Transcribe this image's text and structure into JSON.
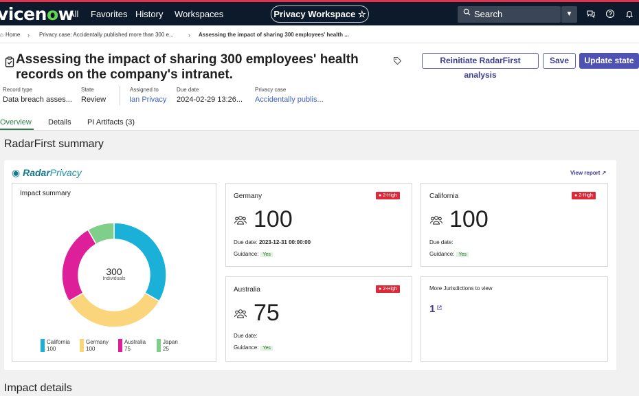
{
  "nav": {
    "logo_prefix": "vicen",
    "logo_o": "o",
    "logo_suffix": "w",
    "links": [
      "All",
      "Favorites",
      "History",
      "Workspaces"
    ],
    "workspace": "Privacy Workspace ☆",
    "search_placeholder": "Search"
  },
  "breadcrumb": {
    "home": "Home",
    "case": "Privacy case: Accidentally published more than 300 e...",
    "current": "Assessing the impact of sharing 300 employees' health ..."
  },
  "record": {
    "title": "Assessing the impact of sharing 300 employees' health records on the company's intranet.",
    "buttons": {
      "reinitiate": "Reinitiate RadarFirst analysis",
      "save": "Save",
      "update": "Update state"
    },
    "fields": [
      {
        "label": "Record type",
        "value": "Data breach asses..."
      },
      {
        "label": "State",
        "value": "Review"
      },
      {
        "label": "Assigned to",
        "value": "Ian Privacy"
      },
      {
        "label": "Due date",
        "value": "2024-02-29 13:26..."
      },
      {
        "label": "Privacy case",
        "value": "Accidentally publis..."
      }
    ],
    "tabs": [
      "Overview",
      "Details",
      "PI Artifacts (3)"
    ]
  },
  "summary": {
    "heading": "RadarFirst summary",
    "logo_bold": "Radar",
    "logo_light": "Privacy",
    "view_report": "View report ↗",
    "impact_title": "Impact summary",
    "total": "300",
    "total_unit": "Individuals",
    "slices": [
      {
        "name": "California",
        "value": 100,
        "color": "#1ab0d8"
      },
      {
        "name": "Germany",
        "value": 100,
        "color": "#fbd57c"
      },
      {
        "name": "Australia",
        "value": 75,
        "color": "#de1f9a"
      },
      {
        "name": "Japan",
        "value": 25,
        "color": "#7fce8a"
      }
    ],
    "jurisdictions": [
      {
        "name": "Germany",
        "badge": "2-High",
        "count": "100",
        "due_label": "Due date:",
        "due_value": "2023-12-31 00:00:00",
        "guidance_label": "Guidance:",
        "guidance": "Yes"
      },
      {
        "name": "California",
        "badge": "2-High",
        "count": "100",
        "due_label": "Due date:",
        "due_value": "",
        "guidance_label": "Guidance:",
        "guidance": "Yes"
      },
      {
        "name": "Australia",
        "badge": "2-High",
        "count": "75",
        "due_label": "Due date:",
        "due_value": "",
        "guidance_label": "Guidance:",
        "guidance": "Yes"
      }
    ],
    "more_title": "More Jurisdictions to view",
    "more_count": "1"
  },
  "details_heading": "Impact details"
}
